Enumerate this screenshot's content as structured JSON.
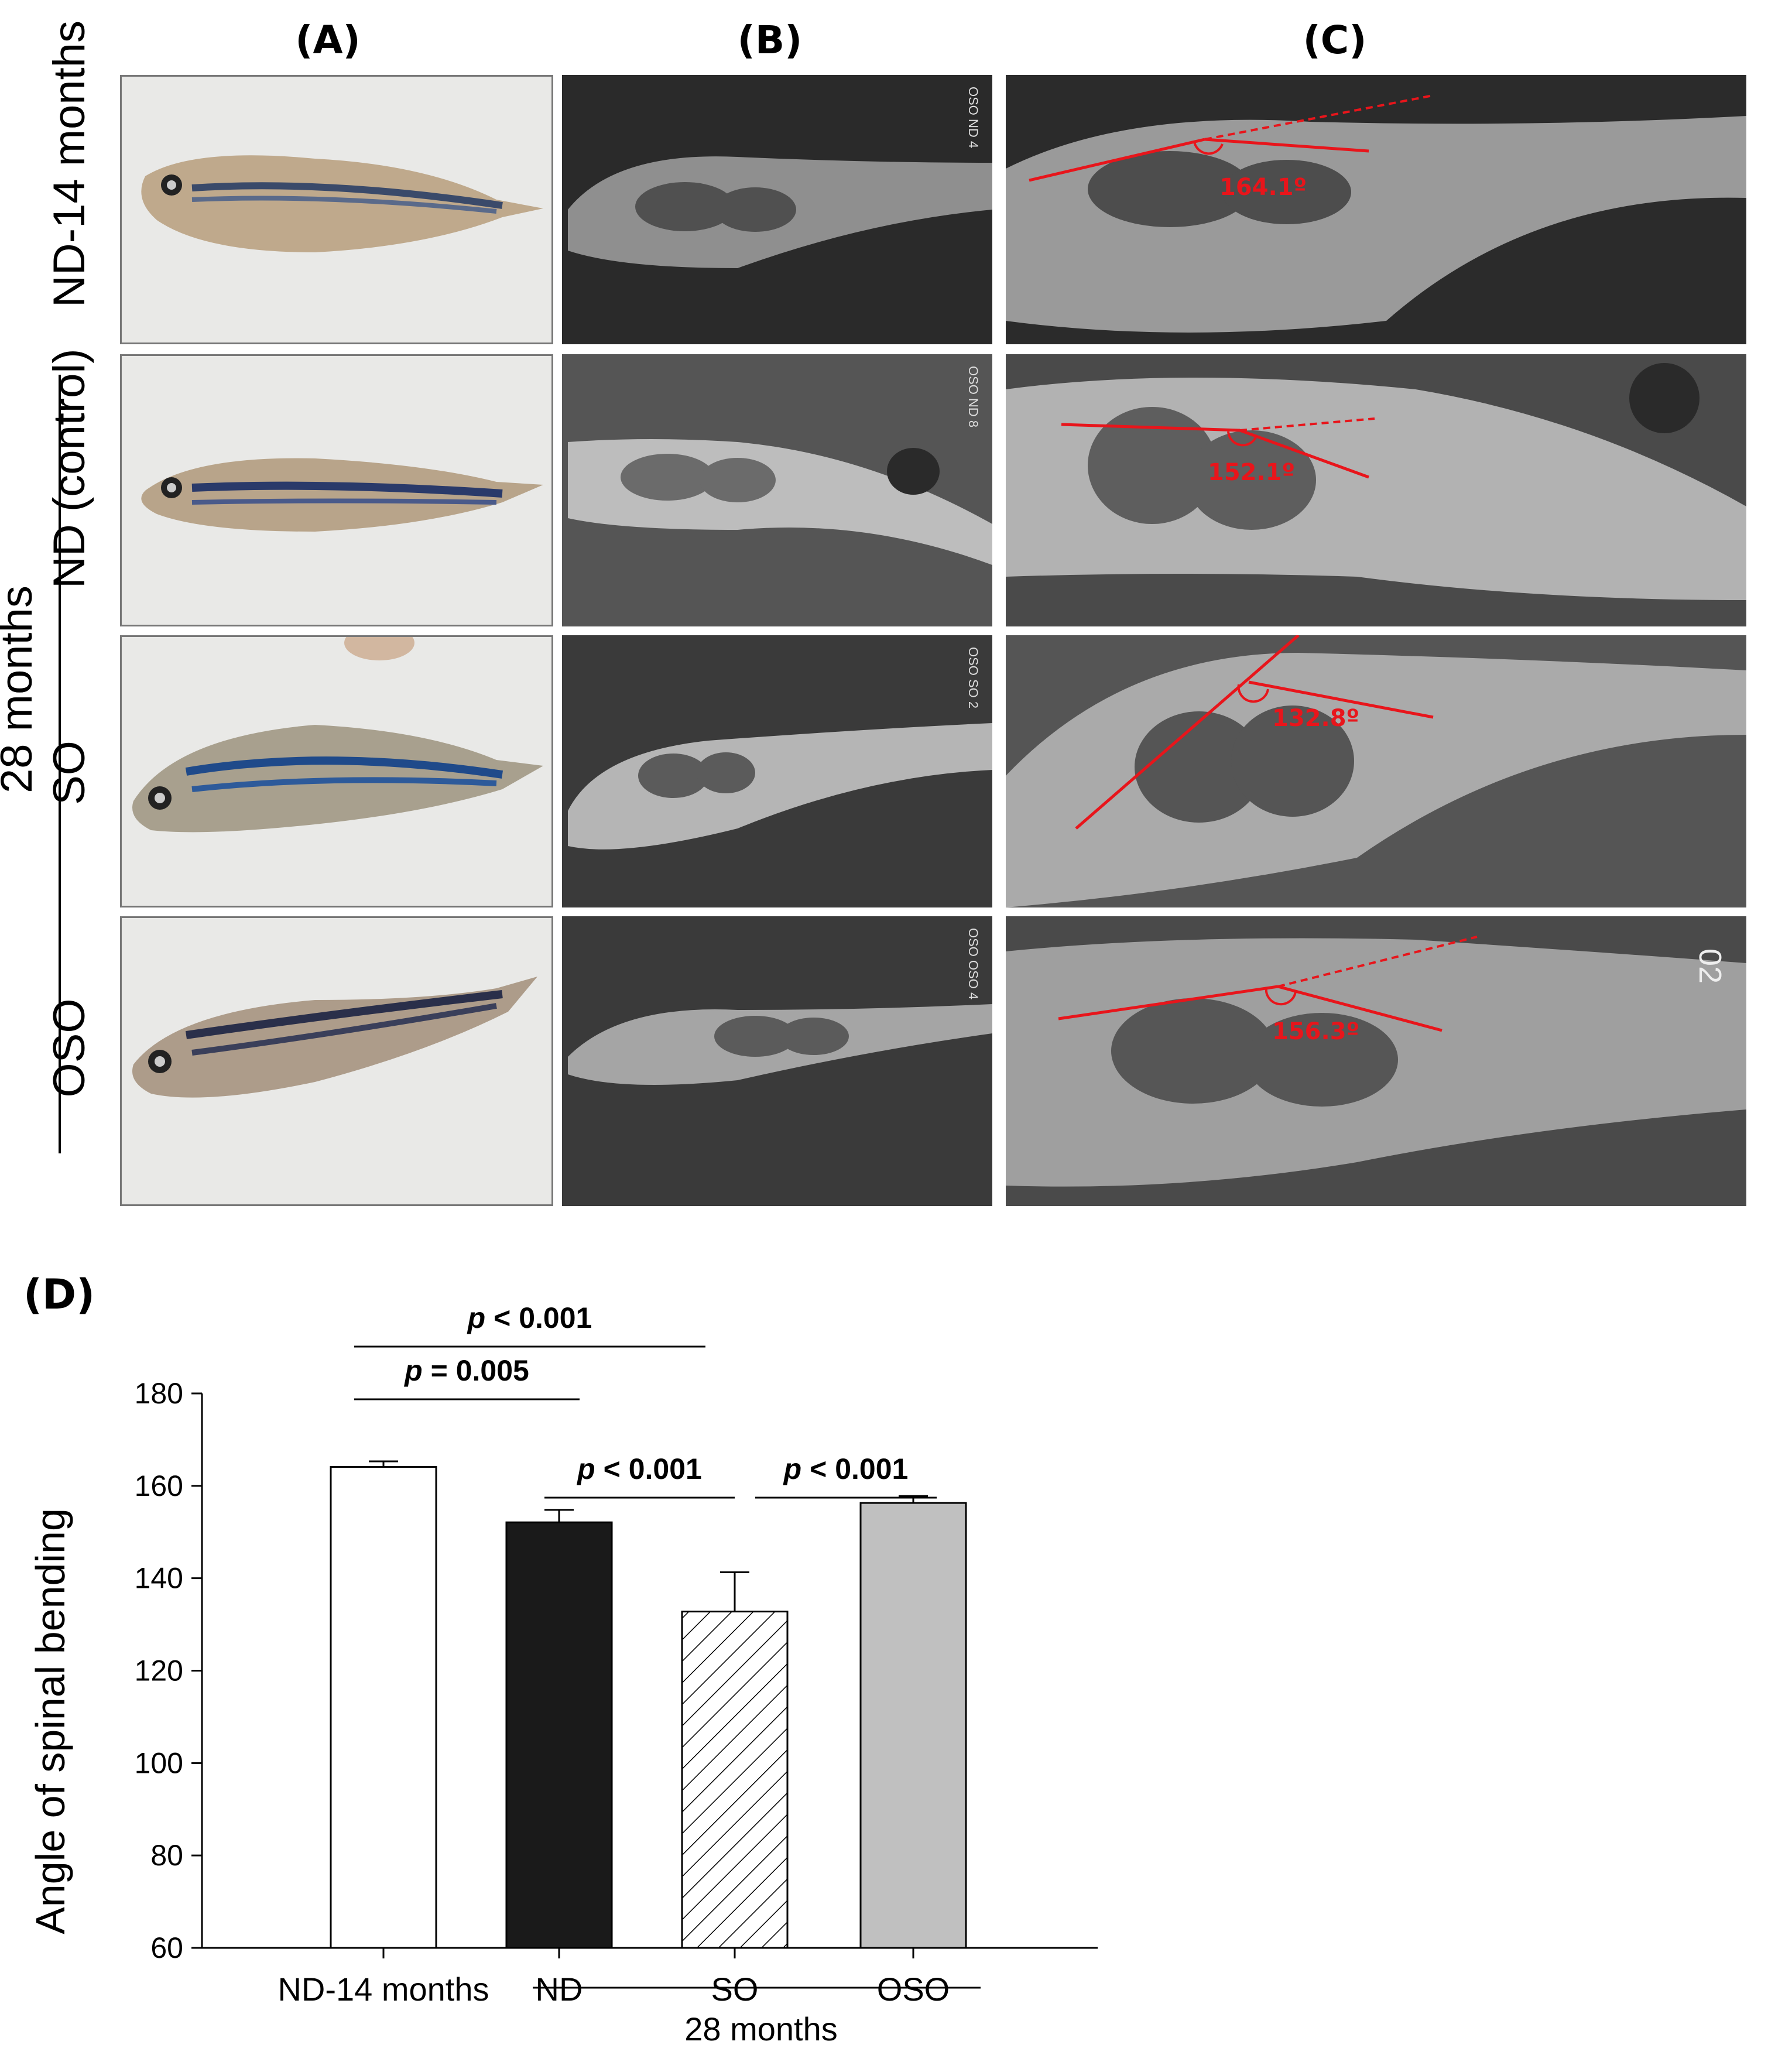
{
  "figure": {
    "column_headers": [
      "(A)",
      "(B)",
      "(C)"
    ],
    "row_labels": [
      "ND-14 months",
      "ND (control)",
      "SO",
      "OSO"
    ],
    "group_label": "28 months",
    "xray_tags": [
      "OSO ND 4",
      "OSO ND 8",
      "OSO SO 2",
      "OSO OSO 4"
    ],
    "angle_labels": [
      "164.1º",
      "152.1º",
      "132.8º",
      "156.3º"
    ],
    "corner_mark": "02",
    "colors": {
      "angle_line": "#e8151b",
      "bar_nd14": "#ffffff",
      "bar_nd": "#1a1a1a",
      "bar_so_hatch": "#000000",
      "bar_oso": "#c0c0c0"
    },
    "icons": [
      "zebrafish-photo",
      "xray-image"
    ]
  },
  "chart": {
    "panel_label": "(D)",
    "chart_data": {
      "type": "bar",
      "categories": [
        "ND-14 months",
        "ND",
        "SO",
        "OSO"
      ],
      "values": [
        164.1,
        152.1,
        132.8,
        156.3
      ],
      "errors": [
        1.2,
        2.7,
        8.5,
        1.5
      ],
      "fills": [
        "white",
        "black",
        "hatched",
        "gray"
      ],
      "ylabel": "Angle of spinal bending",
      "xlabel": "",
      "group_label": "28 months",
      "ylim": [
        60,
        180
      ],
      "yticks": [
        60,
        80,
        100,
        120,
        140,
        160,
        180
      ],
      "comparisons": [
        {
          "from": 0,
          "to": 2,
          "p": "< 0.001"
        },
        {
          "from": 0,
          "to": 1,
          "p": "= 0.005"
        },
        {
          "from": 1,
          "to": 2,
          "p": "< 0.001"
        },
        {
          "from": 2,
          "to": 3,
          "p": "< 0.001"
        }
      ],
      "p_symbol": "p"
    }
  }
}
